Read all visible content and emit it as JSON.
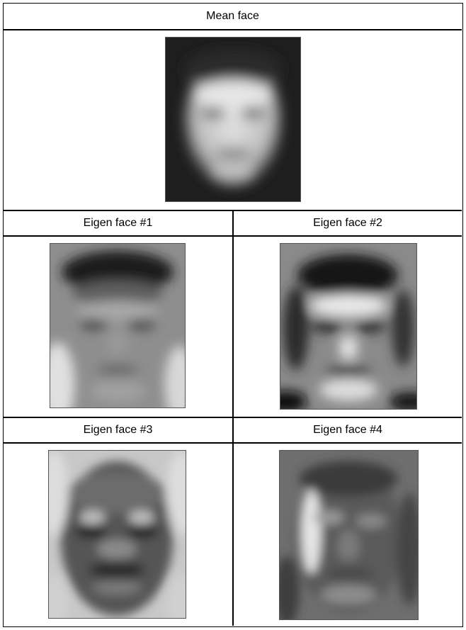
{
  "cells": {
    "mean": {
      "title": "Mean  face"
    },
    "eigen1": {
      "title": "Eigen face #1"
    },
    "eigen2": {
      "title": "Eigen face #2"
    },
    "eigen3": {
      "title": "Eigen face #3"
    },
    "eigen4": {
      "title": "Eigen face #4"
    }
  }
}
